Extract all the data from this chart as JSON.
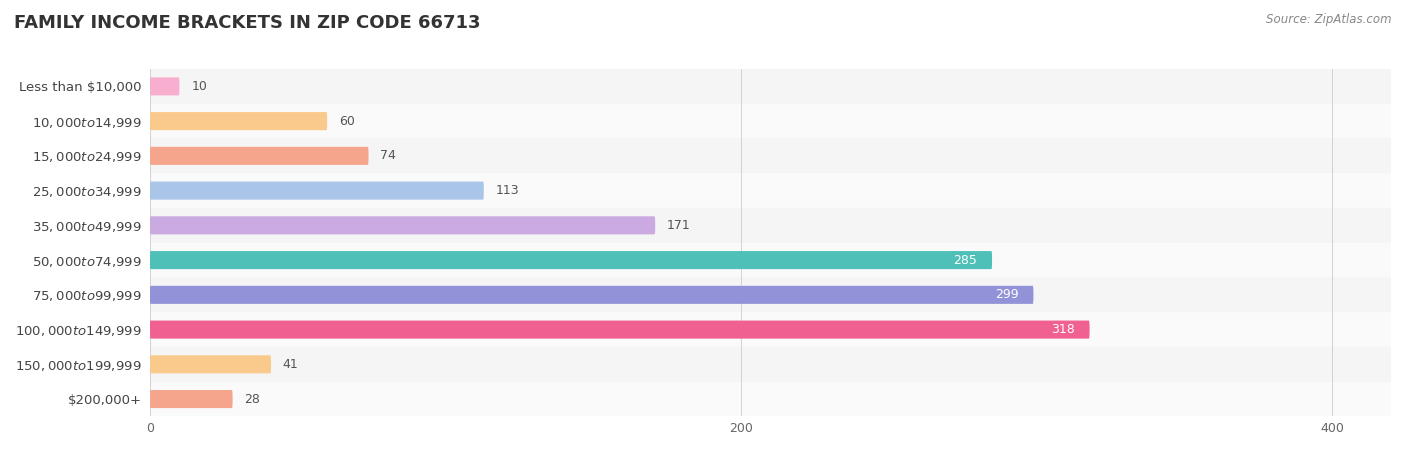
{
  "title": "FAMILY INCOME BRACKETS IN ZIP CODE 66713",
  "source": "Source: ZipAtlas.com",
  "categories": [
    "Less than $10,000",
    "$10,000 to $14,999",
    "$15,000 to $24,999",
    "$25,000 to $34,999",
    "$35,000 to $49,999",
    "$50,000 to $74,999",
    "$75,000 to $99,999",
    "$100,000 to $149,999",
    "$150,000 to $199,999",
    "$200,000+"
  ],
  "values": [
    10,
    60,
    74,
    113,
    171,
    285,
    299,
    318,
    41,
    28
  ],
  "bar_colors": [
    "#f8aece",
    "#fac98c",
    "#f5a58c",
    "#a9c5e8",
    "#caaae0",
    "#4ec0b8",
    "#9292d8",
    "#f06090",
    "#fac98c",
    "#f5a58c"
  ],
  "background_color": "#ffffff",
  "row_bg_even": "#f5f5f5",
  "row_bg_odd": "#fafafa",
  "xlim": [
    0,
    420
  ],
  "title_fontsize": 13,
  "label_fontsize": 9.5,
  "value_fontsize": 9,
  "bar_height": 0.52
}
